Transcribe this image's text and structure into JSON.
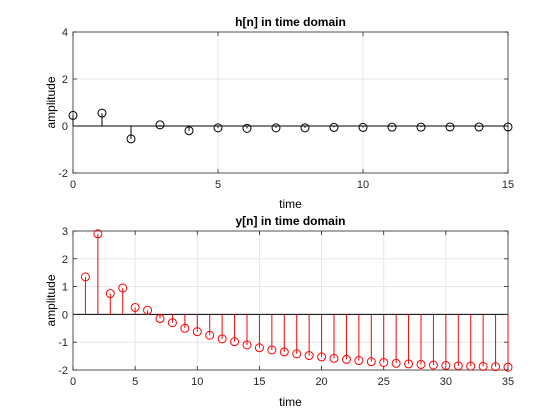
{
  "chart_data": [
    {
      "type": "stem",
      "title": "h[n] in time domain",
      "xlabel": "time",
      "ylabel": "amplitude",
      "xlim": [
        0,
        15
      ],
      "ylim": [
        -2,
        4
      ],
      "xticks": [
        0,
        5,
        10,
        15
      ],
      "yticks": [
        -2,
        0,
        2,
        4
      ],
      "grid": true,
      "color": "#000000",
      "series": [
        {
          "x": [
            0,
            1,
            2,
            3,
            4,
            5,
            6,
            7,
            8,
            9,
            10,
            11,
            12,
            13,
            14,
            15
          ],
          "values": [
            0.45,
            0.55,
            -0.55,
            0.05,
            -0.2,
            -0.08,
            -0.1,
            -0.08,
            -0.08,
            -0.06,
            -0.06,
            -0.05,
            -0.05,
            -0.04,
            -0.04,
            -0.04
          ]
        }
      ]
    },
    {
      "type": "stem",
      "title": "y[n] in time domain",
      "xlabel": "time",
      "ylabel": "amplitude",
      "xlim": [
        0,
        35
      ],
      "ylim": [
        -2,
        3
      ],
      "xticks": [
        0,
        5,
        10,
        15,
        20,
        25,
        30,
        35
      ],
      "yticks": [
        -2,
        -1,
        0,
        1,
        2,
        3
      ],
      "grid": true,
      "color": "#ff0000",
      "series": [
        {
          "x": [
            1,
            2,
            3,
            4,
            5,
            6,
            7,
            8,
            9,
            10,
            11,
            12,
            13,
            14,
            15,
            16,
            17,
            18,
            19,
            20,
            21,
            22,
            23,
            24,
            25,
            26,
            27,
            28,
            29,
            30,
            31,
            32,
            33,
            34,
            35
          ],
          "values": [
            1.35,
            2.9,
            0.75,
            0.95,
            0.25,
            0.15,
            -0.15,
            -0.3,
            -0.5,
            -0.62,
            -0.75,
            -0.88,
            -0.98,
            -1.1,
            -1.2,
            -1.28,
            -1.35,
            -1.42,
            -1.48,
            -1.53,
            -1.58,
            -1.62,
            -1.66,
            -1.7,
            -1.73,
            -1.76,
            -1.78,
            -1.8,
            -1.82,
            -1.84,
            -1.85,
            -1.86,
            -1.87,
            -1.88,
            -1.9
          ]
        }
      ]
    }
  ]
}
